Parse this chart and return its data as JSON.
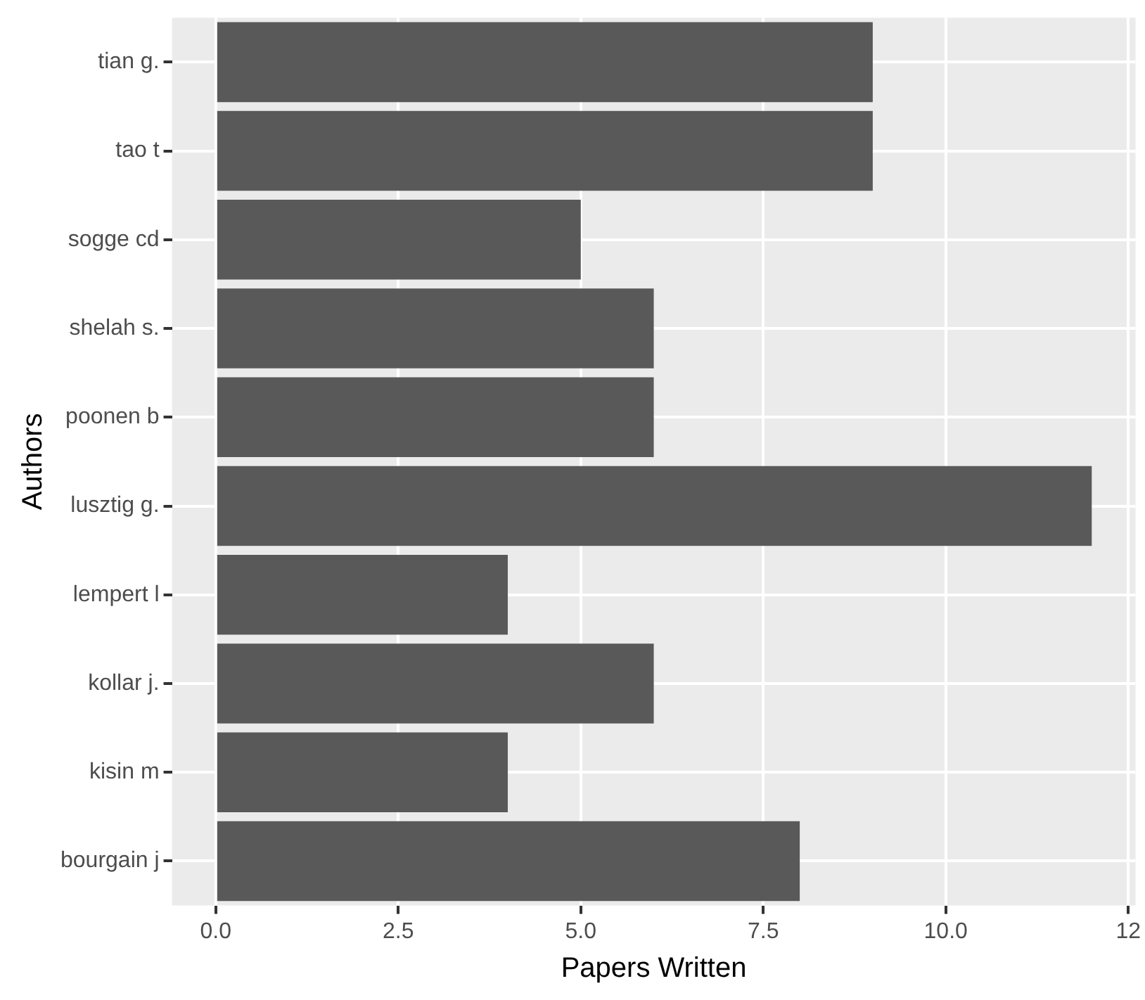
{
  "chart_data": {
    "type": "bar",
    "orientation": "horizontal",
    "xlabel": "Papers Written",
    "ylabel": "Authors",
    "categories": [
      "tian g.",
      "tao t",
      "sogge cd",
      "shelah s.",
      "poonen b",
      "lusztig g.",
      "lempert l",
      "kollar j.",
      "kisin m",
      "bourgain j"
    ],
    "values": [
      9,
      9,
      5,
      6,
      6,
      12,
      4,
      6,
      4,
      8
    ],
    "color": "#595959",
    "xlim": [
      -0.6,
      12.6
    ],
    "xticks": [
      {
        "value": 0,
        "label": "0.0"
      },
      {
        "value": 2.5,
        "label": "2.5"
      },
      {
        "value": 5,
        "label": "5.0"
      },
      {
        "value": 7.5,
        "label": "7.5"
      },
      {
        "value": 10,
        "label": "10.0"
      },
      {
        "value": 12.5,
        "label": "12"
      }
    ],
    "grid": true,
    "legend": false
  }
}
